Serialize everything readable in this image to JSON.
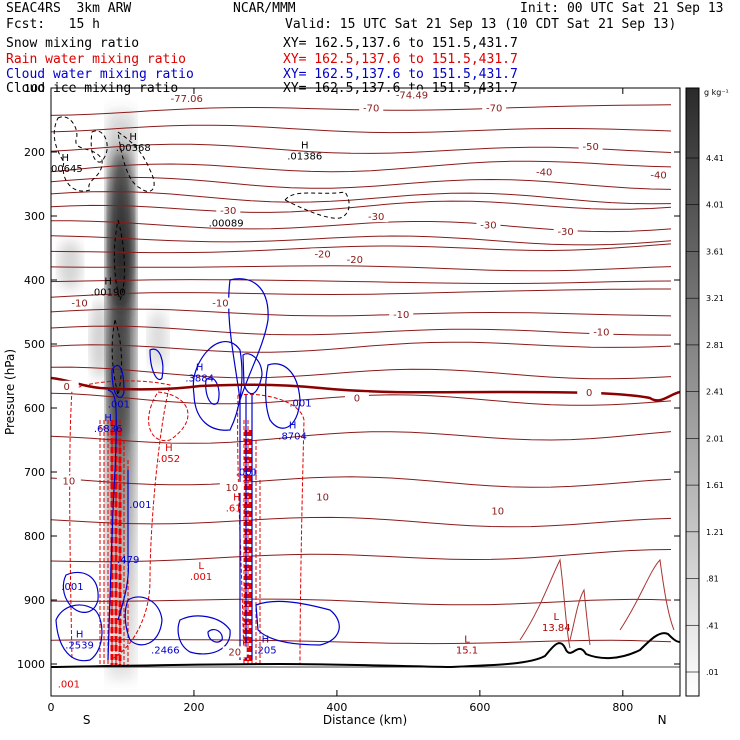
{
  "header": {
    "model": "SEAC4RS  3km ARW",
    "center": "NCAR/MMM",
    "init": "Init: 00 UTC Sat 21 Sep 13",
    "fcst": "Fcst:   15 h",
    "valid": "Valid: 15 UTC Sat 21 Sep 13 (10 CDT Sat 21 Sep 13)",
    "fields": [
      {
        "name": "Snow mixing ratio",
        "color": "#000000",
        "xy": "XY= 162.5,137.6 to 151.5,431.7"
      },
      {
        "name": "Rain water mixing ratio",
        "color": "#dd0000",
        "xy": "XY= 162.5,137.6 to 151.5,431.7"
      },
      {
        "name": "Cloud water mixing ratio",
        "color": "#0000cc",
        "xy": "XY= 162.5,137.6 to 151.5,431.7"
      },
      {
        "name": "Cloud ice mixing ratio",
        "color": "#000000",
        "xy": "XY= 162.5,137.6 to 151.5,431.7"
      }
    ]
  },
  "colorbar": {
    "unit": "g kg⁻¹",
    "labels": [
      "4.41",
      "4.01",
      "3.61",
      "3.21",
      "2.81",
      "2.41",
      "2.01",
      "1.61",
      "1.21",
      ".81",
      ".41",
      ".01"
    ]
  },
  "chart_data": {
    "type": "cross-section contour",
    "xlabel": "Distance (km)",
    "ylabel": "Pressure (hPa)",
    "xlim": [
      0,
      880
    ],
    "ylim": [
      1050,
      100
    ],
    "x_ticks": [
      "0",
      "200",
      "400",
      "600",
      "800"
    ],
    "x_tick_values": [
      0,
      200,
      400,
      600,
      800
    ],
    "y_ticks": [
      "100",
      "200",
      "300",
      "400",
      "500",
      "600",
      "700",
      "800",
      "900",
      "1000"
    ],
    "y_tick_values": [
      100,
      200,
      300,
      400,
      500,
      600,
      700,
      800,
      900,
      1000
    ],
    "end_labels": {
      "left": "S",
      "right": "N",
      "left_km": 50,
      "right_km": 855
    },
    "temperature_contours": [
      {
        "label": "-77.06",
        "x": 190,
        "p": 120
      },
      {
        "label": "-74.49",
        "x": 505,
        "p": 115
      },
      {
        "label": "-70",
        "x": 448,
        "p": 135
      },
      {
        "label": "-70",
        "x": 620,
        "p": 135
      },
      {
        "label": "-50",
        "x": 755,
        "p": 195
      },
      {
        "label": "-40",
        "x": 690,
        "p": 235
      },
      {
        "label": "-40",
        "x": 850,
        "p": 240
      },
      {
        "label": "-30",
        "x": 248,
        "p": 295
      },
      {
        "label": "-30",
        "x": 455,
        "p": 305
      },
      {
        "label": "-30",
        "x": 612,
        "p": 318
      },
      {
        "label": "-30",
        "x": 720,
        "p": 328
      },
      {
        "label": "-20",
        "x": 380,
        "p": 363
      },
      {
        "label": "-20",
        "x": 425,
        "p": 372
      },
      {
        "label": "-10",
        "x": 40,
        "p": 440
      },
      {
        "label": "-10",
        "x": 237,
        "p": 440
      },
      {
        "label": "-10",
        "x": 490,
        "p": 458
      },
      {
        "label": "-10",
        "x": 770,
        "p": 485
      },
      {
        "label": "0",
        "x": 22,
        "p": 570
      },
      {
        "label": "0",
        "x": 428,
        "p": 588
      },
      {
        "label": "0",
        "x": 753,
        "p": 580
      },
      {
        "label": "10",
        "x": 25,
        "p": 718
      },
      {
        "label": "10",
        "x": 253,
        "p": 728
      },
      {
        "label": "10",
        "x": 380,
        "p": 743
      },
      {
        "label": "10",
        "x": 625,
        "p": 765
      },
      {
        "label": "20",
        "x": 257,
        "p": 985
      }
    ],
    "annotations": [
      {
        "label": "H",
        "value": ".00368",
        "color": "#000000",
        "x": 115,
        "p": 197
      },
      {
        "label": "H",
        "value": ".00645",
        "color": "#000000",
        "x": 20,
        "p": 230
      },
      {
        "label": "H",
        "value": ".01386",
        "color": "#000000",
        "x": 355,
        "p": 210
      },
      {
        "label": "",
        "value": ".00089",
        "color": "#000000",
        "x": 245,
        "p": 315
      },
      {
        "label": "H",
        "value": ".00190",
        "color": "#000000",
        "x": 80,
        "p": 423
      },
      {
        "label": "H",
        "value": ".3884",
        "color": "#0000cc",
        "x": 208,
        "p": 557
      },
      {
        "label": "",
        "value": ".001",
        "color": "#0000cc",
        "x": 95,
        "p": 598
      },
      {
        "label": "H",
        "value": ".6836",
        "color": "#0000cc",
        "x": 80,
        "p": 636
      },
      {
        "label": "",
        "value": ".001",
        "color": "#0000cc",
        "x": 349,
        "p": 596
      },
      {
        "label": "H",
        "value": ".8704",
        "color": "#0000cc",
        "x": 338,
        "p": 648
      },
      {
        "label": "",
        "value": ".001",
        "color": "#0000cc",
        "x": 274,
        "p": 704
      },
      {
        "label": "",
        "value": ".001",
        "color": "#0000cc",
        "x": 125,
        "p": 755
      },
      {
        "label": "",
        "value": ".479",
        "color": "#0000cc",
        "x": 108,
        "p": 841
      },
      {
        "label": "",
        "value": ".001",
        "color": "#0000cc",
        "x": 30,
        "p": 883
      },
      {
        "label": "H",
        "value": ".2539",
        "color": "#0000cc",
        "x": 40,
        "p": 974
      },
      {
        "label": "",
        "value": ".2466",
        "color": "#0000cc",
        "x": 160,
        "p": 982
      },
      {
        "label": "H",
        "value": ".205",
        "color": "#0000cc",
        "x": 300,
        "p": 982
      },
      {
        "label": "H",
        "value": ".052",
        "color": "#dd0000",
        "x": 165,
        "p": 683
      },
      {
        "label": "H",
        "value": ".617",
        "color": "#dd0000",
        "x": 260,
        "p": 760
      },
      {
        "label": "L",
        "value": ".001",
        "color": "#dd0000",
        "x": 210,
        "p": 867
      },
      {
        "label": "",
        "value": ".001",
        "color": "#dd0000",
        "x": 25,
        "p": 1035
      },
      {
        "label": "L",
        "value": "15.1",
        "color": "#aa0000",
        "x": 582,
        "p": 982
      },
      {
        "label": "L",
        "value": "13.84",
        "color": "#aa0000",
        "x": 707,
        "p": 947
      }
    ]
  }
}
